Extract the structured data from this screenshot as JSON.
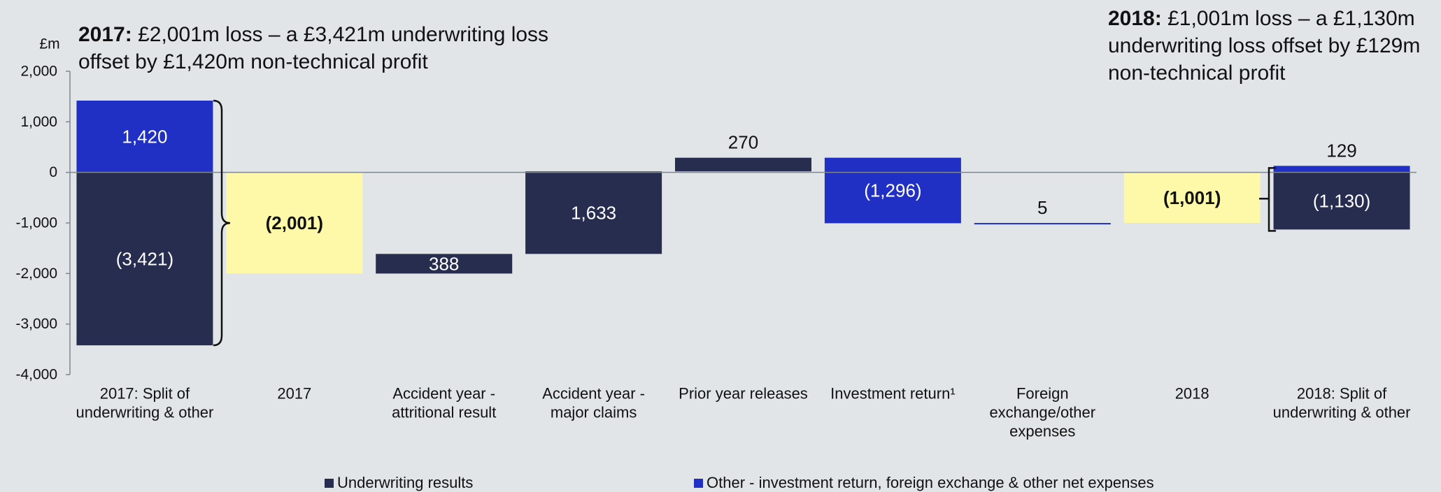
{
  "colors": {
    "background": "#e1e5e8",
    "underwriting": "#262d4f",
    "other": "#2030c4",
    "total": "#fef9a8",
    "axis": "#7f8790",
    "text": "#111111"
  },
  "annotations": {
    "left": {
      "bold": "2017:",
      "text": " £2,001m loss – a £3,421m underwriting loss offset by £1,420m non-technical profit"
    },
    "right": {
      "bold": "2018:",
      "text": " £1,001m loss – a £1,130m underwriting loss offset by £129m non-technical profit"
    }
  },
  "legend": [
    {
      "label": "Underwriting results",
      "color": "#262d4f"
    },
    {
      "label": "Other - investment return, foreign exchange & other net expenses",
      "color": "#2030c4"
    }
  ],
  "chart_data": {
    "type": "bar",
    "subtype": "waterfall",
    "ylabel": "£m",
    "ylim": [
      -4000,
      2000
    ],
    "yticks": [
      2000,
      1000,
      0,
      -1000,
      -2000,
      -3000,
      -4000
    ],
    "ytick_labels": [
      "2,000",
      "1,000",
      "0",
      "-1,000",
      "-2,000",
      "-3,000",
      "-4,000"
    ],
    "categories": [
      [
        "2017: Split of",
        "underwriting & other"
      ],
      [
        "2017"
      ],
      [
        "Accident year -",
        "attritional result"
      ],
      [
        "Accident year -",
        "major claims"
      ],
      [
        "Prior year releases"
      ],
      [
        "Investment return¹"
      ],
      [
        "Foreign",
        "exchange/other",
        "expenses"
      ],
      [
        "2018"
      ],
      [
        "2018: Split of",
        "underwriting & other"
      ]
    ],
    "bars": [
      {
        "cat": 0,
        "from": 0,
        "to": 1420,
        "kind": "other",
        "label": "1,420",
        "label_pos": "inside",
        "label_color": "#ffffff",
        "bold": false
      },
      {
        "cat": 0,
        "from": 0,
        "to": -3421,
        "kind": "underwriting",
        "label": "(3,421)",
        "label_pos": "inside",
        "label_color": "#ffffff",
        "bold": false
      },
      {
        "cat": 1,
        "from": 0,
        "to": -2001,
        "kind": "total",
        "label": "(2,001)",
        "label_pos": "inside",
        "label_color": "#111111",
        "bold": true
      },
      {
        "cat": 2,
        "from": -2001,
        "to": -1613,
        "kind": "underwriting",
        "label": "388",
        "label_pos": "inside",
        "label_color": "#ffffff",
        "bold": false
      },
      {
        "cat": 3,
        "from": -1613,
        "to": 20,
        "kind": "underwriting",
        "label": "1,633",
        "label_pos": "inside",
        "label_color": "#ffffff",
        "bold": false
      },
      {
        "cat": 4,
        "from": 20,
        "to": 290,
        "kind": "underwriting",
        "label": "270",
        "label_pos": "above",
        "label_color": "#111111",
        "bold": false
      },
      {
        "cat": 5,
        "from": 290,
        "to": -1006,
        "kind": "other",
        "label": "(1,296)",
        "label_pos": "inside",
        "label_color": "#ffffff",
        "bold": false
      },
      {
        "cat": 6,
        "from": -1006,
        "to": -1001,
        "kind": "other",
        "label": "5",
        "label_pos": "above",
        "label_color": "#111111",
        "bold": false
      },
      {
        "cat": 7,
        "from": 0,
        "to": -1001,
        "kind": "total",
        "label": "(1,001)",
        "label_pos": "inside",
        "label_color": "#111111",
        "bold": true
      },
      {
        "cat": 8,
        "from": 0,
        "to": 129,
        "kind": "other",
        "label": "129",
        "label_pos": "above",
        "label_color": "#111111",
        "bold": false
      },
      {
        "cat": 8,
        "from": 0,
        "to": -1130,
        "kind": "underwriting",
        "label": "(1,130)",
        "label_pos": "inside",
        "label_color": "#ffffff",
        "bold": false
      }
    ]
  }
}
